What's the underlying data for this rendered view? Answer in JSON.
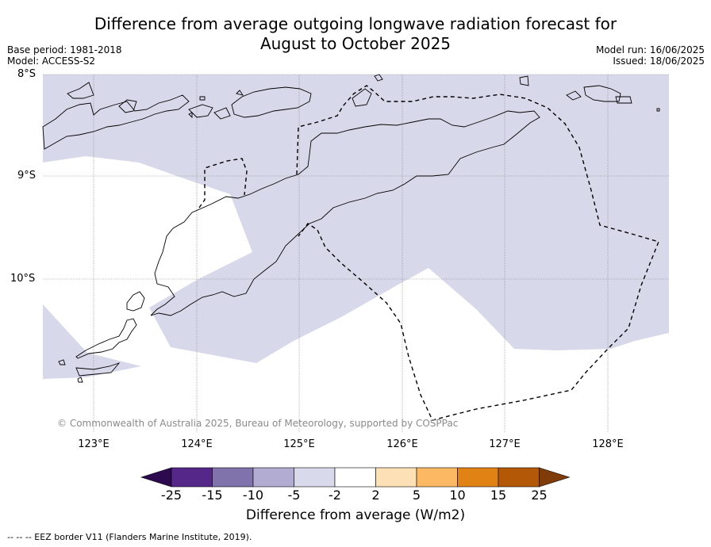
{
  "title": {
    "line1": "Difference from average outgoing longwave radiation forecast for",
    "line2": "August to October 2025"
  },
  "meta_left": {
    "base_period": "Base period: 1981-2018",
    "model": "Model: ACCESS-S2"
  },
  "meta_right": {
    "model_run": "Model run: 16/06/2025",
    "issued": "Issued: 18/06/2025"
  },
  "map": {
    "lat_labels": [
      "8°S",
      "9°S",
      "10°S"
    ],
    "lon_labels": [
      "123°E",
      "124°E",
      "125°E",
      "126°E",
      "127°E",
      "128°E"
    ],
    "copyright": "© Commonwealth of Australia 2025, Bureau of Meteorology, supported by COSPPac",
    "shading_color": "#d7d8ea"
  },
  "legend": {
    "ticks": [
      "-25",
      "-15",
      "-10",
      "-5",
      "-2",
      "2",
      "5",
      "10",
      "15",
      "25"
    ],
    "colors": [
      "#2d0a4f",
      "#542789",
      "#8073ac",
      "#b2abd2",
      "#d8daeb",
      "#ffffff",
      "#fee0b6",
      "#fdb863",
      "#e08214",
      "#b35806",
      "#7f3b08"
    ],
    "label": "Difference from average (W/m2)"
  },
  "footnote": "--  --  -- EEZ border V11 (Flanders Marine Institute, 2019)."
}
